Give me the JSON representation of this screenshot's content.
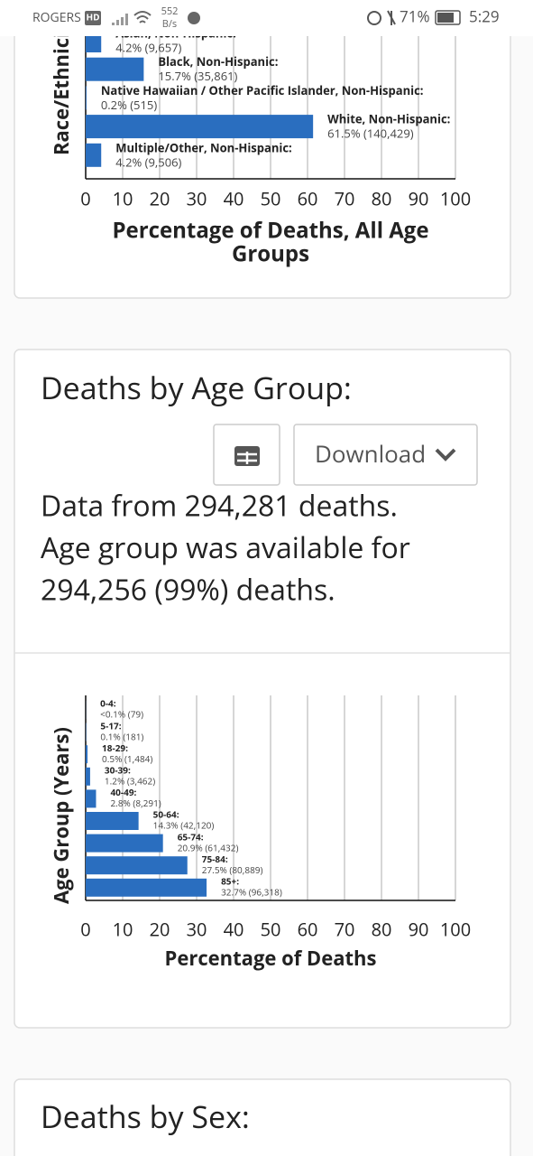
{
  "status_bar": {
    "carrier": "ROGERS",
    "network_badge": "HD",
    "speed_value": "552",
    "speed_unit": "B/s",
    "battery": "71%",
    "time": "5:29"
  },
  "chart_data": [
    {
      "type": "bar",
      "orientation": "horizontal",
      "ylabel": "Race/Ethnicity",
      "xlabel": [
        "Percentage of Deaths, All Age",
        "Groups"
      ],
      "categories": [
        "Asian, Non-Hispanic:",
        "Black, Non-Hispanic:",
        "Native Hawaiian / Other Pacific Islander, Non-Hispanic:",
        "White, Non-Hispanic:",
        "Multiple/Other, Non-Hispanic:"
      ],
      "values": [
        4.2,
        15.7,
        0.2,
        61.5,
        4.2
      ],
      "value_labels": [
        "4.2% (9,657)",
        "15.7% (35,861)",
        "0.2% (515)",
        "61.5% (140,429)",
        "4.2% (9,506)"
      ],
      "color": "#2a6ebf",
      "xlim": [
        0,
        100
      ],
      "xticks": [
        0,
        10,
        20,
        30,
        40,
        50,
        60,
        70,
        80,
        90,
        100
      ],
      "grid": true
    },
    {
      "type": "bar",
      "orientation": "horizontal",
      "ylabel": "Age Group (Years)",
      "xlabel": [
        "Percentage of Deaths"
      ],
      "categories": [
        "0-4:",
        "5-17:",
        "18-29:",
        "30-39:",
        "40-49:",
        "50-64:",
        "65-74:",
        "75-84:",
        "85+:"
      ],
      "values": [
        0.03,
        0.1,
        0.5,
        1.2,
        2.8,
        14.3,
        20.9,
        27.5,
        32.7
      ],
      "value_labels": [
        "<0.1% (79)",
        "0.1% (181)",
        "0.5% (1,484)",
        "1.2% (3,462)",
        "2.8% (8,291)",
        "14.3% (42,120)",
        "20.9% (61,432)",
        "27.5% (80,889)",
        "32.7% (96,318)"
      ],
      "color": "#2a6ebf",
      "xlim": [
        0,
        100
      ],
      "xticks": [
        0,
        10,
        20,
        30,
        40,
        50,
        60,
        70,
        80,
        90,
        100
      ],
      "grid": true
    }
  ],
  "age_card": {
    "title": "Deaths by Age Group:",
    "download_button": "Download",
    "summary_lines": [
      "Data from 294,281 deaths.",
      "Age group was available for",
      "294,256 (99%) deaths."
    ]
  },
  "sex_card": {
    "title": "Deaths by Sex:"
  }
}
